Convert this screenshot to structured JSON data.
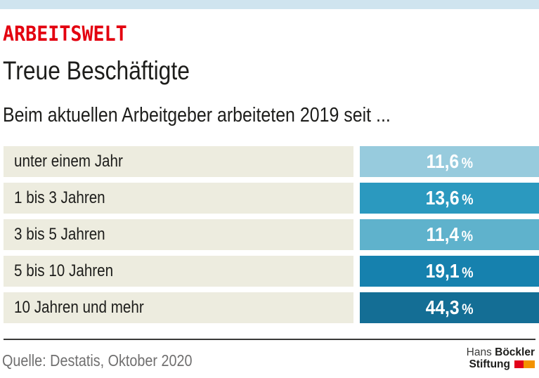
{
  "header": {
    "kicker": "ARBEITSWELT",
    "title": "Treue Beschäftigte",
    "subtitle": "Beim aktuellen Arbeitgeber arbeiteten 2019 seit ..."
  },
  "chart_data": {
    "type": "table",
    "title": "Treue Beschäftigte",
    "subtitle": "Beim aktuellen Arbeitgeber arbeiteten 2019 seit ...",
    "unit_label": "%",
    "categories": [
      "unter einem Jahr",
      "1 bis 3 Jahren",
      "3 bis 5 Jahren",
      "5 bis 10 Jahren",
      "10 Jahren und mehr"
    ],
    "values": [
      11.6,
      13.6,
      11.4,
      19.1,
      44.3
    ],
    "rows": [
      {
        "label": "unter einem Jahr",
        "value_label": "11,6",
        "color": "#97cbdd"
      },
      {
        "label": "1 bis 3 Jahren",
        "value_label": "13,6",
        "color": "#2b99bf"
      },
      {
        "label": "3 bis 5 Jahren",
        "value_label": "11,4",
        "color": "#5fb2cc"
      },
      {
        "label": "5 bis 10 Jahren",
        "value_label": "19,1",
        "color": "#1681ae"
      },
      {
        "label": "10 Jahren und mehr",
        "value_label": "44,3",
        "color": "#146e95"
      }
    ]
  },
  "footer": {
    "source": "Quelle: Destatis, Oktober 2020",
    "logo": {
      "line1_light": "Hans",
      "line1_bold": "Böckler",
      "line2_bold": "Stiftung"
    }
  },
  "colors": {
    "top_bar": "#cfe4ef",
    "kicker_red": "#e3000f",
    "label_cell_bg": "#edecdf",
    "divider": "#3a3a39",
    "source_text": "#706f6f",
    "logo_red": "#e2001a",
    "logo_orange": "#f39200"
  }
}
